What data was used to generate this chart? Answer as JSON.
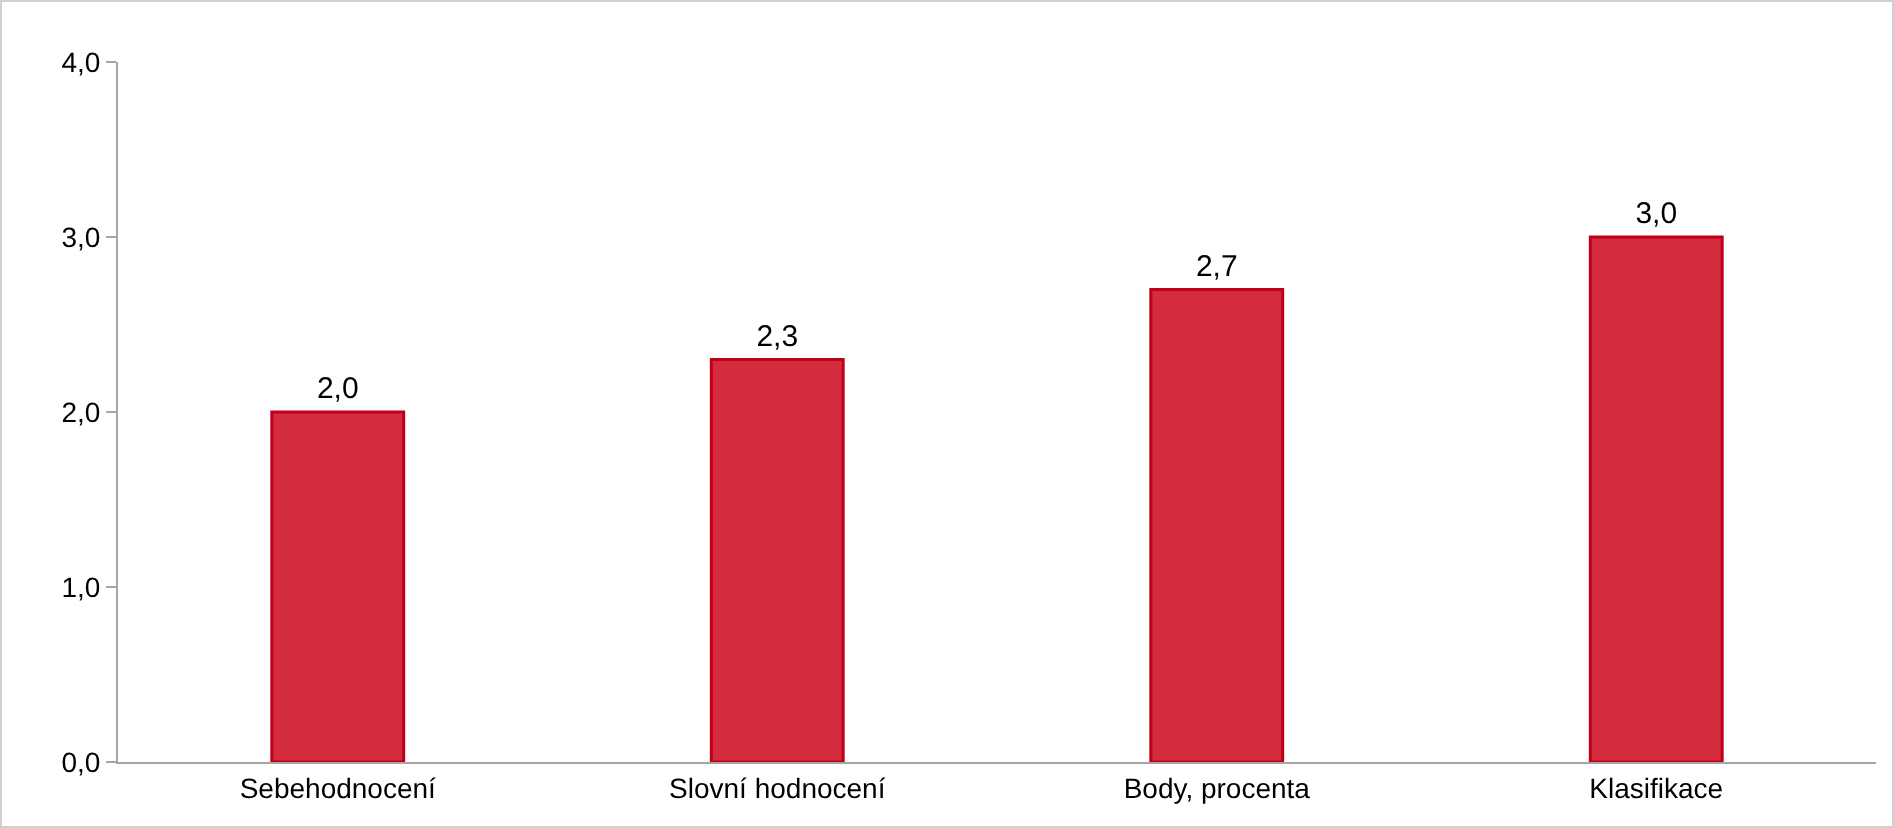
{
  "chart_data": {
    "type": "bar",
    "categories": [
      "Sebehodnocení",
      "Slovní hodnocení",
      "Body, procenta",
      "Klasifikace"
    ],
    "values": [
      2.0,
      2.3,
      2.7,
      3.0
    ],
    "value_labels": [
      "2,0",
      "2,3",
      "2,7",
      "3,0"
    ],
    "color": "#d52b3f",
    "ylim": [
      0,
      4
    ],
    "yticks": [
      {
        "value": 0,
        "label": "0,0"
      },
      {
        "value": 1,
        "label": "1,0"
      },
      {
        "value": 2,
        "label": "2,0"
      },
      {
        "value": 3,
        "label": "3,0"
      },
      {
        "value": 4,
        "label": "4,0"
      }
    ],
    "grid": false
  }
}
